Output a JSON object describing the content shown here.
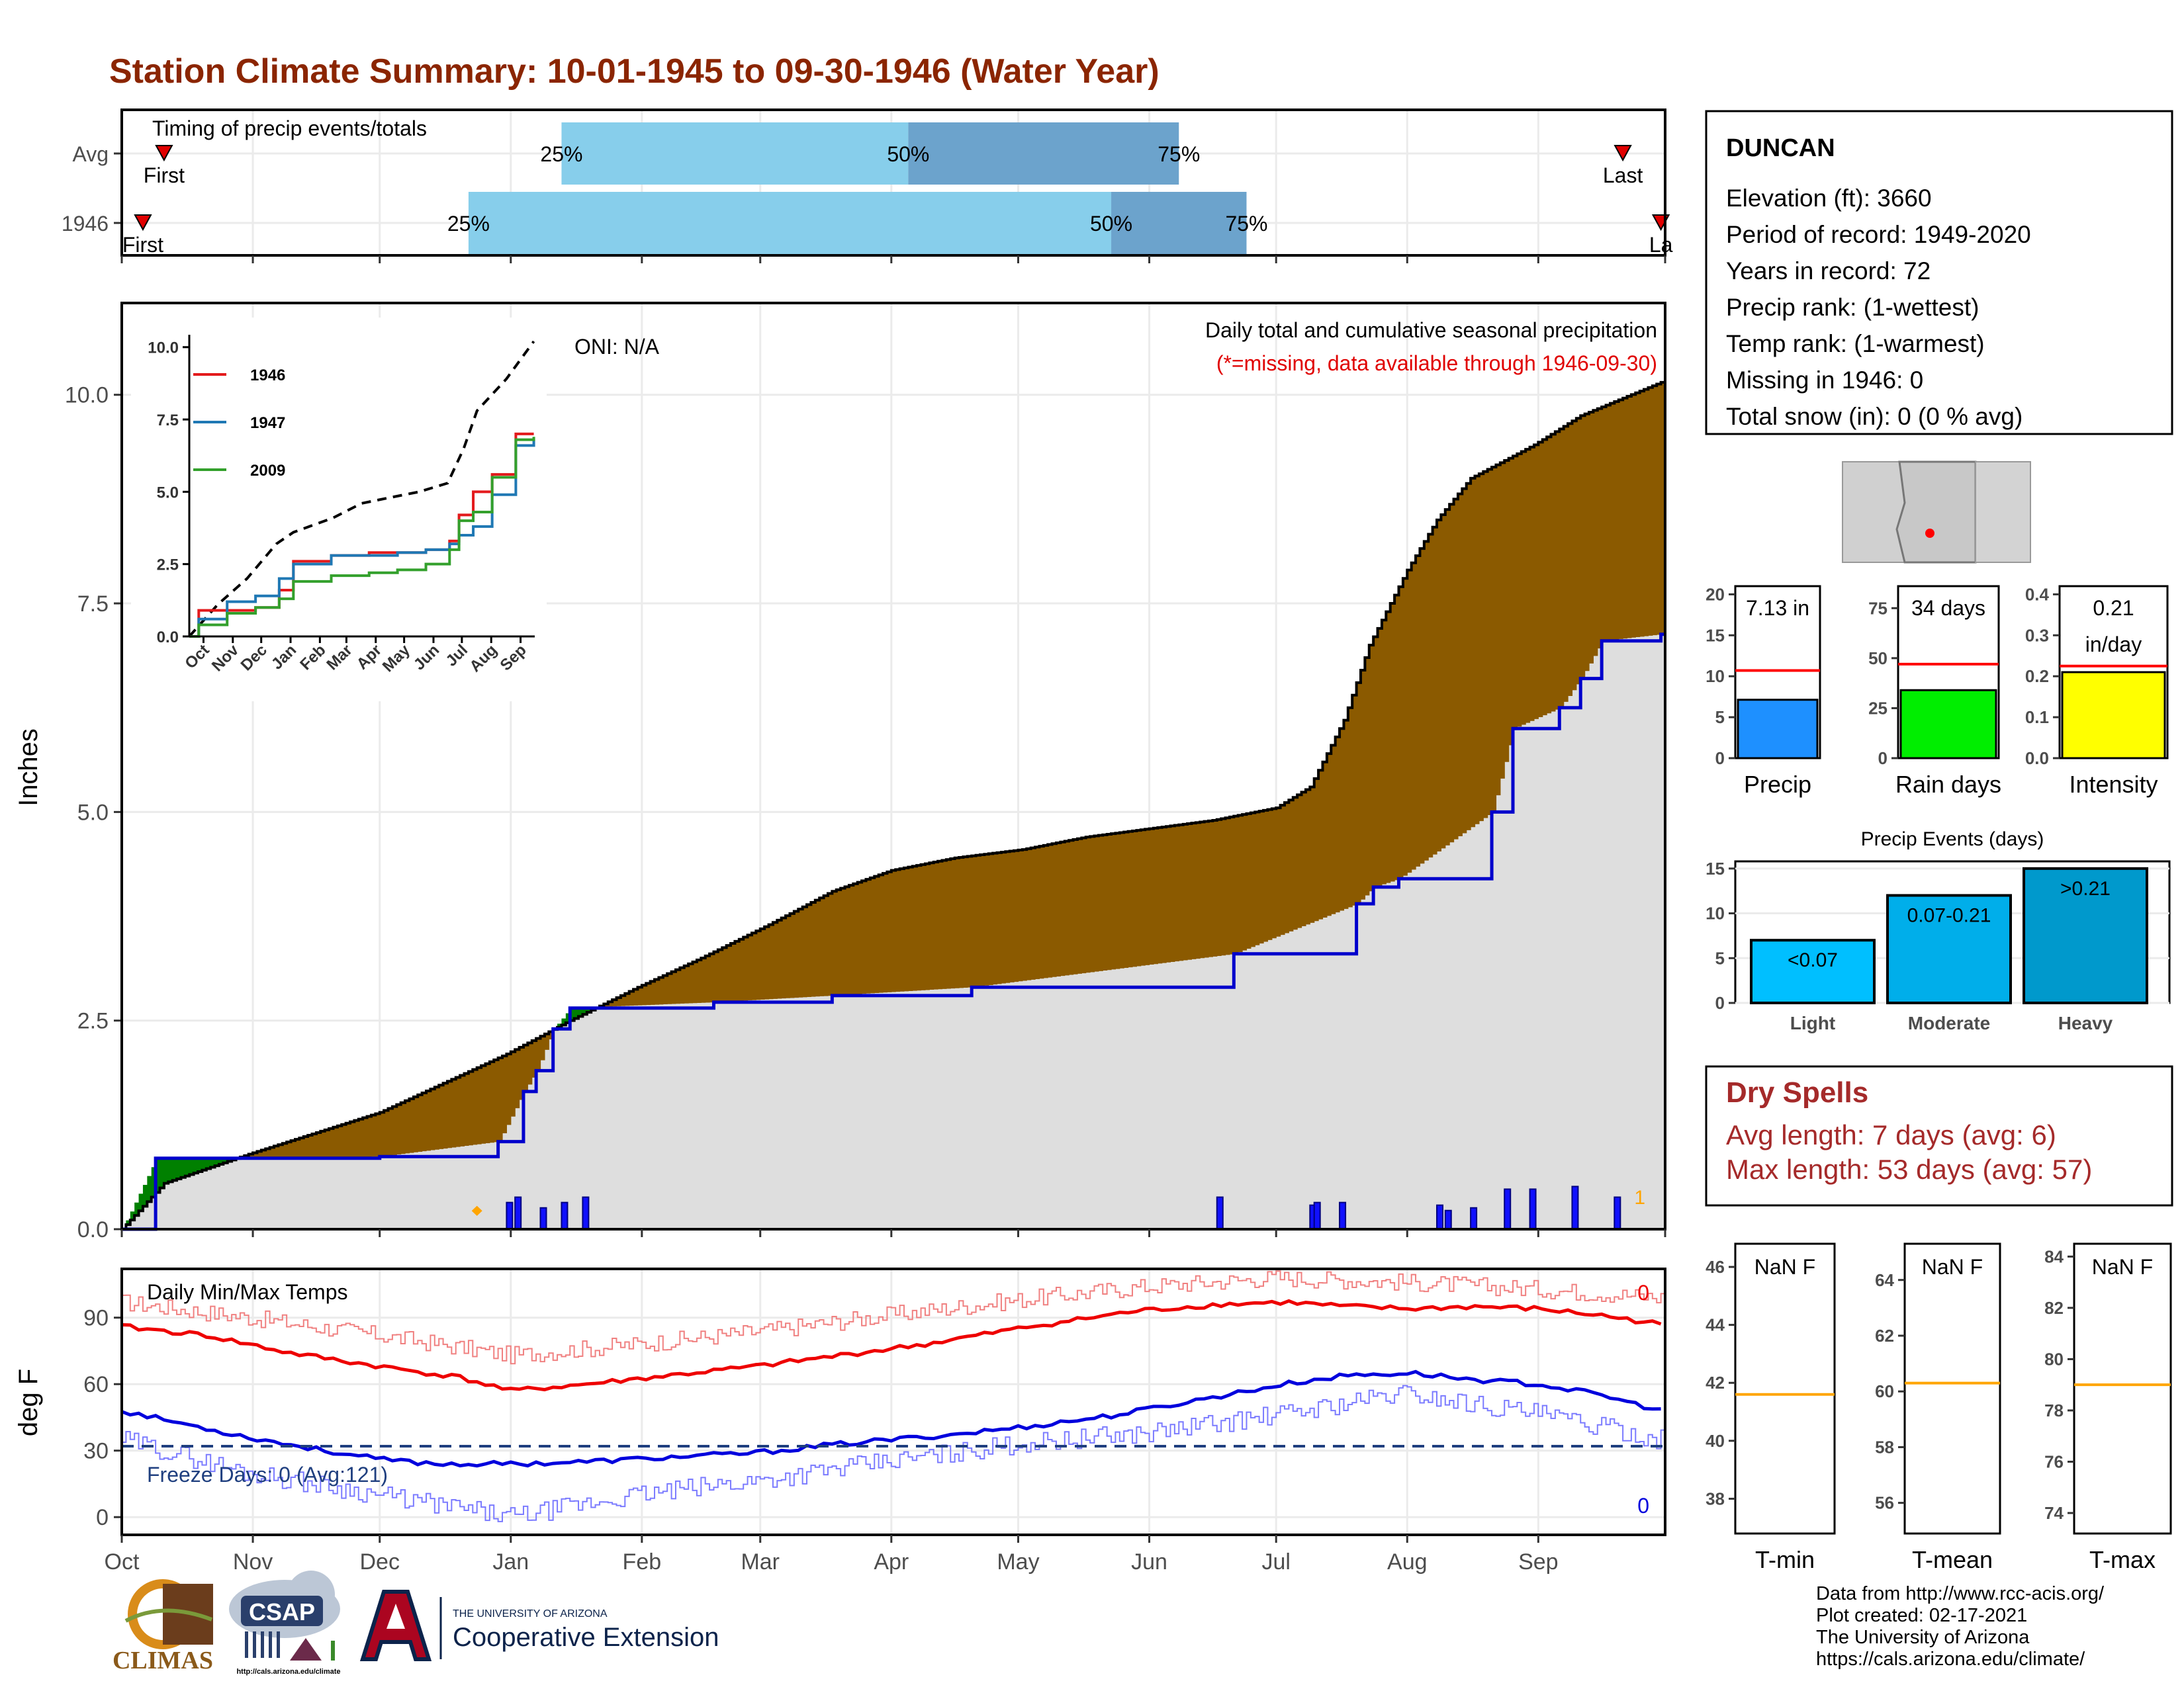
{
  "title": "Station Climate Summary: 10-01-1945 to 09-30-1946 (Water Year)",
  "colors": {
    "title": "#8b2500",
    "precip_cum": "#8b5a00",
    "avg_area": "#dedede",
    "blue_line": "#0000cc",
    "green_fill": "#008000",
    "light_blue": "#87ceeb",
    "steel_blue": "#6ca3cc",
    "red": "#ee0000",
    "orange": "#ffa500",
    "dry_red": "#a52a2a"
  },
  "timing": {
    "label": "Timing of precip events/totals",
    "rows": [
      {
        "name": "Avg",
        "first_label": "First",
        "last_label": "Last",
        "first_day": 10,
        "last_day": 355,
        "p25_day": 104,
        "p50_day": 186,
        "p75_day": 250,
        "p25_label": "25%",
        "p50_label": "50%",
        "p75_label": "75%"
      },
      {
        "name": "1946",
        "first_label": "First",
        "last_label": "La",
        "first_day": 5,
        "last_day": 364,
        "p25_day": 82,
        "p50_day": 234,
        "p75_day": 266,
        "p25_label": "25%",
        "p50_label": "50%",
        "p75_label": "75%"
      }
    ]
  },
  "precip_main": {
    "ylabel": "Inches",
    "yticks": [
      "0.0",
      "2.5",
      "5.0",
      "7.5",
      "10.0"
    ],
    "ytick_values": [
      0,
      2.5,
      5,
      7.5,
      10
    ],
    "ylim": [
      0,
      11.1
    ],
    "title_line1": "Daily total and cumulative seasonal precipitation",
    "title_line2": "(*=missing, data available through 1946-09-30)",
    "oni": "ONI: N/A",
    "corner_count": "1"
  },
  "inset": {
    "yticks": [
      "0.0",
      "2.5",
      "5.0",
      "7.5",
      "10.0"
    ],
    "ytick_values": [
      0,
      2.5,
      5,
      7.5,
      10
    ],
    "xticks": [
      "Oct",
      "Nov",
      "Dec",
      "Jan",
      "Feb",
      "Mar",
      "Apr",
      "May",
      "Jun",
      "Jul",
      "Aug",
      "Sep"
    ],
    "legend": [
      {
        "name": "1946",
        "color": "#e31a1c"
      },
      {
        "name": "1947",
        "color": "#1f78b4"
      },
      {
        "name": "2009",
        "color": "#33a02c"
      }
    ]
  },
  "months": [
    "Oct",
    "Nov",
    "Dec",
    "Jan",
    "Feb",
    "Mar",
    "Apr",
    "May",
    "Jun",
    "Jul",
    "Aug",
    "Sep"
  ],
  "temps": {
    "ylabel": "deg F",
    "title": "Daily Min/Max Temps",
    "yticks": [
      "0",
      "30",
      "60",
      "90"
    ],
    "ytick_values": [
      0,
      30,
      60,
      90
    ],
    "ylim": [
      -8,
      112
    ],
    "freeze_label": "Freeze Days: 0 (Avg:121)",
    "max_count": "0",
    "min_count": "0",
    "freeze_line": 32
  },
  "station": {
    "name": "DUNCAN",
    "lines": [
      "Elevation (ft): 3660",
      "Period of record: 1949-2020",
      "Years in record: 72",
      "Precip rank:  (1-wettest)",
      "Temp rank:  (1-warmest)",
      "Missing in 1946: 0",
      "Total snow (in): 0 (0 % avg)"
    ]
  },
  "mini_bars": [
    {
      "label": "Precip",
      "value_label": "7.13 in",
      "value": 7.13,
      "avg": 10.7,
      "yticks": [
        "0",
        "5",
        "10",
        "15",
        "20"
      ],
      "ytick_values": [
        0,
        5,
        10,
        15,
        20
      ],
      "ymax": 21,
      "color": "#1e90ff"
    },
    {
      "label": "Rain days",
      "value_label": "34 days",
      "value": 34,
      "avg": 47,
      "yticks": [
        "0",
        "25",
        "50",
        "75"
      ],
      "ytick_values": [
        0,
        25,
        50,
        75
      ],
      "ymax": 86,
      "color": "#00ee00"
    },
    {
      "label": "Intensity",
      "value_label": "0.21",
      "value_label2": "in/day",
      "value": 0.21,
      "avg": 0.225,
      "yticks": [
        "0.0",
        "0.1",
        "0.2",
        "0.3",
        "0.4"
      ],
      "ytick_values": [
        0,
        0.1,
        0.2,
        0.3,
        0.4
      ],
      "ymax": 0.42,
      "color": "#ffff00"
    }
  ],
  "events": {
    "title": "Precip Events (days)",
    "yticks": [
      "0",
      "5",
      "10",
      "15"
    ],
    "ytick_values": [
      0,
      5,
      10,
      15
    ],
    "ymax": 15.8,
    "bars": [
      {
        "name": "Light",
        "label": "<0.07",
        "value": 7,
        "color": "#00bfff"
      },
      {
        "name": "Moderate",
        "label": "0.07-0.21",
        "value": 12,
        "color": "#00aeea"
      },
      {
        "name": "Heavy",
        "label": ">0.21",
        "value": 15,
        "color": "#0099cc"
      }
    ]
  },
  "dry": {
    "title": "Dry Spells",
    "line1": "Avg length: 7 days (avg: 6)",
    "line2": "Max length: 53 days (avg: 57)"
  },
  "temp_boxes": [
    {
      "label": "T-min",
      "value_label": "NaN F",
      "yticks": [
        "38",
        "40",
        "42",
        "44",
        "46"
      ],
      "ytick_values": [
        38,
        40,
        42,
        44,
        46
      ],
      "ylim": [
        36.8,
        46.8
      ],
      "avg": 41.6
    },
    {
      "label": "T-mean",
      "value_label": "NaN F",
      "yticks": [
        "56",
        "58",
        "60",
        "62",
        "64"
      ],
      "ytick_values": [
        56,
        58,
        60,
        62,
        64
      ],
      "ylim": [
        54.9,
        65.3
      ],
      "avg": 60.3
    },
    {
      "label": "T-max",
      "value_label": "NaN F",
      "yticks": [
        "74",
        "76",
        "78",
        "80",
        "82",
        "84"
      ],
      "ytick_values": [
        74,
        76,
        78,
        80,
        82,
        84
      ],
      "ylim": [
        73.2,
        84.5
      ],
      "avg": 79
    }
  ],
  "credits": [
    "Data from http://www.rcc-acis.org/",
    "Plot created: 02-17-2021",
    "The University of Arizona",
    "https://cals.arizona.edu/climate/"
  ],
  "logos": {
    "climas": "CLIMAS",
    "csap": "CSAP",
    "csap_url": "http://cals.arizona.edu/climate",
    "ua_small": "THE UNIVERSITY OF ARIZONA",
    "ua_big": "Cooperative Extension"
  },
  "chart_data": [
    {
      "type": "area",
      "title": "Daily total and cumulative seasonal precipitation",
      "ylabel": "Inches",
      "ylim": [
        0,
        11.1
      ],
      "series": [
        {
          "name": "cumulative average",
          "x_days": [
            0,
            10,
            30,
            61,
            91,
            106,
            122,
            137,
            153,
            168,
            182,
            197,
            213,
            228,
            243,
            258,
            273,
            281,
            289,
            295,
            304,
            311,
            319,
            334,
            345,
            364
          ],
          "values": [
            0,
            0.55,
            0.9,
            1.4,
            2.1,
            2.5,
            2.9,
            3.25,
            3.65,
            4.05,
            4.3,
            4.45,
            4.55,
            4.7,
            4.8,
            4.9,
            5.05,
            5.3,
            6.1,
            7.0,
            7.9,
            8.5,
            9.0,
            9.4,
            9.75,
            10.15
          ]
        },
        {
          "name": "cumulative 1946",
          "x_days": [
            0,
            8,
            30,
            61,
            89,
            95,
            98,
            102,
            106,
            140,
            168,
            201,
            263,
            292,
            296,
            302,
            324,
            329,
            340,
            345,
            350,
            364
          ],
          "values": [
            0,
            0.85,
            0.85,
            0.87,
            1.05,
            1.65,
            1.9,
            2.4,
            2.65,
            2.72,
            2.8,
            2.9,
            3.3,
            3.9,
            4.1,
            4.2,
            5.0,
            6.0,
            6.25,
            6.6,
            7.05,
            7.13
          ]
        }
      ],
      "daily_bars": [
        {
          "day": 91,
          "value": 0.1
        },
        {
          "day": 93,
          "value": 0.12
        },
        {
          "day": 99,
          "value": 0.08
        },
        {
          "day": 104,
          "value": 0.1
        },
        {
          "day": 109,
          "value": 0.12
        },
        {
          "day": 259,
          "value": 0.12
        },
        {
          "day": 281,
          "value": 0.09
        },
        {
          "day": 282,
          "value": 0.1
        },
        {
          "day": 288,
          "value": 0.1
        },
        {
          "day": 311,
          "value": 0.09
        },
        {
          "day": 313,
          "value": 0.07
        },
        {
          "day": 319,
          "value": 0.08
        },
        {
          "day": 327,
          "value": 0.15
        },
        {
          "day": 333,
          "value": 0.15
        },
        {
          "day": 343,
          "value": 0.16
        },
        {
          "day": 353,
          "value": 0.12
        }
      ]
    },
    {
      "type": "line",
      "title": "Daily Min/Max Temps",
      "ylabel": "deg F",
      "ylim": [
        -8,
        112
      ],
      "series": [
        {
          "name": "avg max",
          "x_days": [
            0,
            20,
            40,
            61,
            80,
            92,
            110,
            130,
            150,
            170,
            190,
            215,
            240,
            260,
            275,
            290,
            305,
            320,
            335,
            350,
            364
          ],
          "values": [
            86,
            82,
            74,
            68,
            63,
            57,
            60,
            64,
            68,
            73,
            78,
            86,
            93,
            96,
            97,
            95,
            94,
            95,
            94,
            91,
            87
          ]
        },
        {
          "name": "avg min",
          "x_days": [
            0,
            10,
            20,
            30,
            45,
            61,
            75,
            92,
            110,
            130,
            150,
            170,
            195,
            215,
            235,
            255,
            275,
            290,
            305,
            320,
            335,
            350,
            364
          ],
          "values": [
            48,
            44,
            40,
            36,
            31,
            26,
            24,
            24,
            25,
            27,
            29,
            33,
            37,
            41,
            46,
            53,
            60,
            64,
            65,
            62,
            60,
            55,
            48
          ]
        },
        {
          "name": "record max",
          "x_days": [
            0,
            30,
            61,
            92,
            122,
            152,
            181,
            212,
            242,
            273,
            303,
            334,
            364
          ],
          "values": [
            97,
            90,
            82,
            73,
            78,
            84,
            91,
            98,
            104,
            108,
            106,
            103,
            99
          ]
        },
        {
          "name": "record min",
          "x_days": [
            0,
            30,
            61,
            92,
            122,
            152,
            181,
            212,
            242,
            273,
            303,
            334,
            364
          ],
          "values": [
            35,
            20,
            10,
            0,
            10,
            17,
            25,
            33,
            38,
            46,
            56,
            47,
            35
          ]
        }
      ]
    }
  ]
}
